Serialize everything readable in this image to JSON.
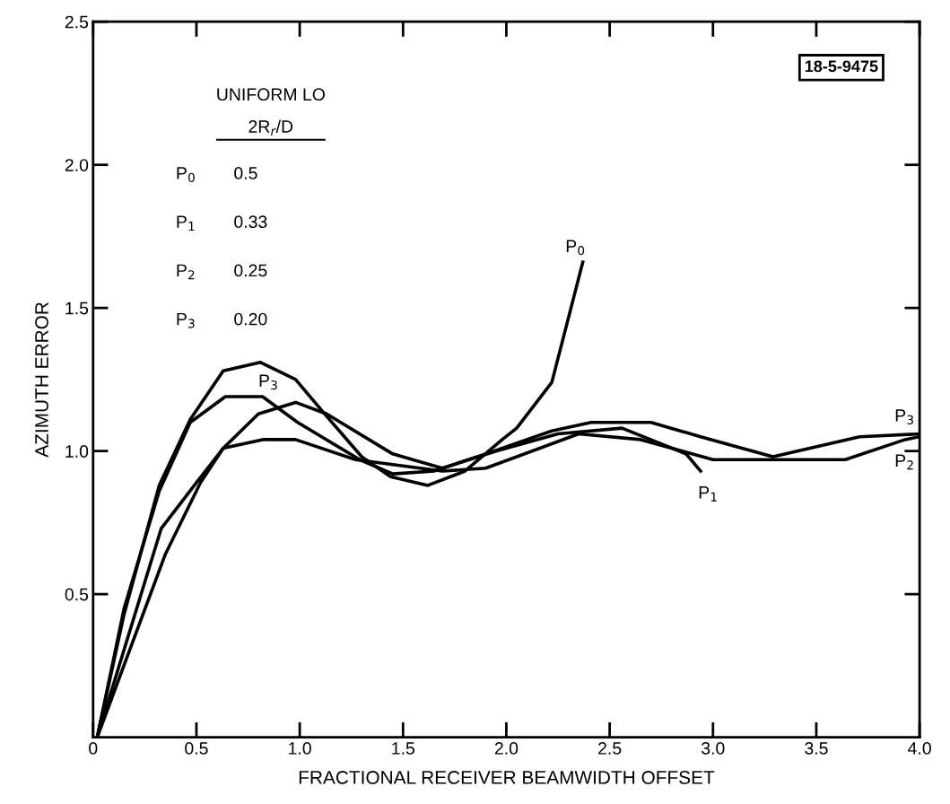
{
  "chart_data": {
    "type": "line",
    "xlabel": "FRACTIONAL RECEIVER BEAMWIDTH OFFSET",
    "ylabel": "AZIMUTH ERROR",
    "xlim": [
      0,
      4.0
    ],
    "ylim": [
      0,
      2.5
    ],
    "xticks": [
      0,
      {
        "value": 0.5,
        "label": "0.5"
      },
      {
        "value": 1.0,
        "label": "1.0"
      },
      {
        "value": 1.5,
        "label": "1.5"
      },
      {
        "value": 2.0,
        "label": "2.0"
      },
      {
        "value": 2.5,
        "label": "2.5"
      },
      {
        "value": 3.0,
        "label": "3.0"
      },
      {
        "value": 3.5,
        "label": "3.5"
      },
      {
        "value": 4.0,
        "label": "4.0"
      }
    ],
    "yticks": [
      {
        "value": 0.5,
        "label": "0.5"
      },
      {
        "value": 1.0,
        "label": "1.0"
      },
      {
        "value": 1.5,
        "label": "1.5"
      },
      {
        "value": 2.0,
        "label": "2.0"
      },
      {
        "value": 2.5,
        "label": "2.5"
      }
    ],
    "grid": false,
    "marker": "none",
    "line_style": "solid",
    "series": [
      {
        "name": "P$_{0}$",
        "color": "#000000",
        "x": [
          0.02,
          0.15,
          0.32,
          0.47,
          0.63,
          0.81,
          0.98,
          1.12,
          1.3,
          1.44,
          1.62,
          1.8,
          1.98,
          2.05,
          2.22,
          2.37
        ],
        "values": [
          0,
          0.43,
          0.88,
          1.11,
          1.28,
          1.31,
          1.25,
          1.13,
          0.98,
          0.91,
          0.88,
          0.93,
          1.04,
          1.08,
          1.24,
          1.66
        ]
      },
      {
        "name": "P$_{1}$",
        "color": "#000000",
        "x": [
          0.02,
          0.33,
          0.49,
          0.63,
          0.8,
          0.98,
          1.13,
          1.45,
          1.69,
          1.95,
          2.25,
          2.56,
          2.87,
          2.94
        ],
        "values": [
          0,
          0.73,
          0.88,
          1.01,
          1.13,
          1.17,
          1.13,
          0.99,
          0.94,
          1.0,
          1.06,
          1.08,
          0.99,
          0.93
        ]
      },
      {
        "name": "P$_{2}$",
        "color": "#000000",
        "x": [
          0.02,
          0.35,
          0.52,
          0.63,
          0.82,
          0.98,
          1.27,
          1.69,
          1.9,
          2.35,
          2.65,
          3.0,
          3.3,
          3.64,
          3.93,
          4.0
        ],
        "values": [
          0,
          0.64,
          0.89,
          1.01,
          1.04,
          1.04,
          0.97,
          0.93,
          0.94,
          1.06,
          1.04,
          0.97,
          0.97,
          0.97,
          1.04,
          1.05
        ]
      },
      {
        "name": "P$_{3}$",
        "color": "#000000",
        "x": [
          0.02,
          0.15,
          0.32,
          0.47,
          0.64,
          0.82,
          0.99,
          1.29,
          1.45,
          1.65,
          1.9,
          2.22,
          2.41,
          2.7,
          2.94,
          3.29,
          3.71,
          4.0
        ],
        "values": [
          0,
          0.45,
          0.86,
          1.1,
          1.19,
          1.19,
          1.1,
          0.97,
          0.92,
          0.93,
          0.99,
          1.07,
          1.1,
          1.1,
          1.05,
          0.98,
          1.05,
          1.06
        ]
      }
    ],
    "annotations": [
      "18-5-9475",
      "UNIFORM LO",
      "2R$_{r}$/D",
      "P$_{0}$",
      "0.5",
      "P$_{1}$",
      "0.33",
      "P$_{2}$",
      "0.25",
      "P$_{3}$",
      "0.20",
      "P$_{3}$"
    ]
  }
}
